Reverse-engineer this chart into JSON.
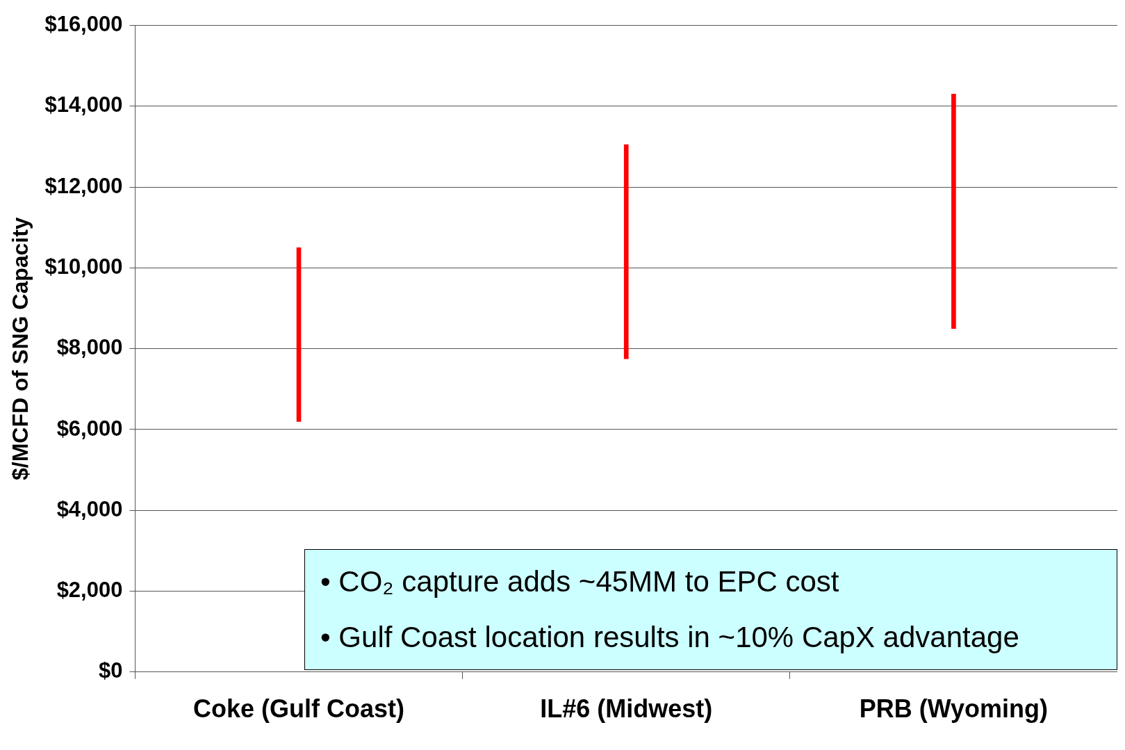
{
  "chart_data": {
    "type": "bar",
    "ylabel": "$/MCFD of SNG Capacity",
    "categories": [
      "Coke (Gulf Coast)",
      "IL#6 (Midwest)",
      "PRB (Wyoming)"
    ],
    "base": [
      6200,
      7750,
      8500
    ],
    "values": [
      4300,
      5300,
      5800
    ],
    "color": "#ff0000",
    "ylim": [
      0,
      16000
    ],
    "yticks": [
      {
        "value": 0,
        "label": "$0"
      },
      {
        "value": 2000,
        "label": "$2,000"
      },
      {
        "value": 4000,
        "label": "$4,000"
      },
      {
        "value": 6000,
        "label": "$6,000"
      },
      {
        "value": 8000,
        "label": "$8,000"
      },
      {
        "value": 10000,
        "label": "$10,000"
      },
      {
        "value": 12000,
        "label": "$12,000"
      },
      {
        "value": 14000,
        "label": "$14,000"
      },
      {
        "value": 16000,
        "label": "$16,000"
      }
    ],
    "grid": "y",
    "legend": false,
    "annotations": [
      "• CO₂ capture adds ~45MM to EPC cost",
      "• Gulf Coast location results in ~10% CapX advantage"
    ]
  }
}
